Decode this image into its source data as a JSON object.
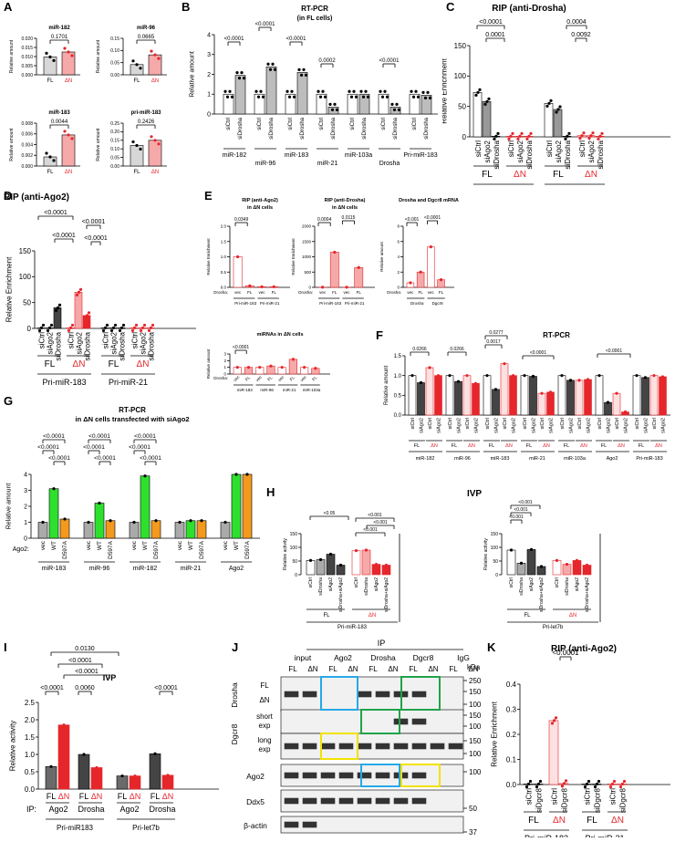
{
  "colors": {
    "fl": "#d7d7d7",
    "dn": "#f6a9a9",
    "red": "#e5262b",
    "green": "#2ee02e",
    "orange": "#f39a1e",
    "blue": "#26a9e8",
    "dgreen": "#1fa34a",
    "yellow": "#f2e200",
    "dark": "#444444"
  },
  "panels": {
    "A": {
      "label": "A",
      "charts": [
        {
          "title": "miR-182",
          "ylabel": "Relative amount",
          "ylim": [
            0,
            0.02
          ],
          "ticks": [
            "0.000",
            "0.005",
            "0.010",
            "0.015",
            "0.020"
          ],
          "categories": [
            "FL",
            "ΔN"
          ],
          "values": [
            0.0098,
            0.0125
          ],
          "pvalue": "0.1701"
        },
        {
          "title": "miR-96",
          "ylabel": "Relative amount",
          "ylim": [
            0,
            0.15
          ],
          "ticks": [
            "0.00",
            "0.05",
            "0.10",
            "0.15"
          ],
          "categories": [
            "FL",
            "ΔN"
          ],
          "values": [
            0.042,
            0.082
          ],
          "pvalue": "0.0665"
        },
        {
          "title": "miR-183",
          "ylabel": "Relative amount",
          "ylim": [
            0,
            0.008
          ],
          "ticks": [
            "0.000",
            "0.002",
            "0.004",
            "0.006",
            "0.008"
          ],
          "categories": [
            "FL",
            "ΔN"
          ],
          "values": [
            0.0017,
            0.0058
          ],
          "pvalue": "0.0044"
        },
        {
          "title": "pri-miR-183",
          "ylabel": "Relative amount",
          "ylim": [
            0,
            0.25
          ],
          "ticks": [
            "0.00",
            "0.05",
            "0.10",
            "0.15",
            "0.20",
            "0.25"
          ],
          "categories": [
            "FL",
            "ΔN"
          ],
          "values": [
            0.12,
            0.15
          ],
          "pvalue": "0.2426"
        }
      ]
    },
    "B": {
      "label": "B",
      "title": "RT-PCR",
      "subtitle": "(in FL cells)",
      "ylabel": "Relative amount",
      "ylim": [
        0,
        4
      ],
      "ticks": [
        "0",
        "1",
        "2",
        "3",
        "4"
      ],
      "groups": [
        "miR-182",
        "miR-96",
        "miR-183",
        "miR-21",
        "miR-103a",
        "Drosha",
        "Pri-miR-183"
      ],
      "categories": [
        "siCtrl",
        "siDrosha"
      ],
      "values": [
        [
          1.0,
          1.95
        ],
        [
          1.0,
          2.38
        ],
        [
          1.0,
          2.1
        ],
        [
          1.0,
          0.35
        ],
        [
          1.0,
          1.0
        ],
        [
          1.0,
          0.35
        ],
        [
          1.0,
          0.95
        ]
      ],
      "pvalues": [
        "<0.0001",
        "<0.0001",
        "<0.0001",
        "0.0002",
        "",
        "<0.0001",
        ""
      ]
    },
    "C": {
      "label": "C",
      "title": "RIP (anti-Drosha)",
      "ylabel": "Relative Enrichment",
      "ylim": [
        0,
        150
      ],
      "ticks": [
        "0",
        "50",
        "100",
        "150"
      ],
      "categories": [
        "siCtrl",
        "siAgo2",
        "siDrosha"
      ],
      "groups": [
        {
          "name": "Pri-miR-183",
          "sub": [
            {
              "cell": "FL",
              "values": [
                73,
                58,
                1
              ]
            },
            {
              "cell": "ΔN",
              "values": [
                1,
                1,
                1
              ]
            }
          ]
        },
        {
          "name": "Pri-miR-21",
          "sub": [
            {
              "cell": "FL",
              "values": [
                55,
                45,
                1
              ]
            },
            {
              "cell": "ΔN",
              "values": [
                2,
                2,
                1
              ]
            }
          ]
        }
      ],
      "pvalues": [
        "<0.0001",
        "0.0001",
        "0.0004",
        "0.0092"
      ]
    },
    "D": {
      "label": "D",
      "title": "RIP (anti-Ago2)",
      "ylabel": "Relative Enrichment",
      "ylim": [
        0,
        150
      ],
      "ticks": [
        "0",
        "50",
        "100",
        "150"
      ],
      "categories": [
        "siCtrl",
        "siAgo2",
        "siDrosha"
      ],
      "groups": [
        {
          "name": "Pri-miR-183",
          "sub": [
            {
              "cell": "FL",
              "values": [
                1,
                1,
                40
              ]
            },
            {
              "cell": "ΔN",
              "values": [
                1,
                70,
                25
              ]
            }
          ]
        },
        {
          "name": "Pri-miR-21",
          "sub": [
            {
              "cell": "FL",
              "values": [
                1,
                1,
                1
              ]
            },
            {
              "cell": "ΔN",
              "values": [
                1,
                1,
                1
              ]
            }
          ]
        }
      ],
      "pvalues": [
        "<0.0001",
        "<0.0001",
        "<0.0001",
        "<0.0001"
      ]
    },
    "E": {
      "label": "E",
      "charts": [
        {
          "title": "RIP (anti-Ago2)",
          "title2": "in ΔN cells",
          "ylabel": "Relative Enrichment",
          "ylim": [
            0,
            2
          ],
          "ticks": [
            "0.0",
            "0.5",
            "1.0",
            "1.5",
            "2.0"
          ],
          "rowlabel": "Drosha:",
          "categories": [
            "vec",
            "FL",
            "vec",
            "FL"
          ],
          "groups": [
            "Pri-miR-183",
            "Pri-miR-21"
          ],
          "values": [
            1.0,
            0.05,
            0.02,
            0.02
          ],
          "pvalue": "0.0349"
        },
        {
          "title": "RIP (anti-Drosha)",
          "title2": "in ΔN cells",
          "ylabel": "Relative Enrichment",
          "ylim": [
            0,
            2000
          ],
          "ticks": [
            "0",
            "500",
            "1000",
            "1500",
            "2000"
          ],
          "rowlabel": "Drosha:",
          "categories": [
            "vec",
            "FL",
            "vec",
            "FL"
          ],
          "groups": [
            "Pri-miR-183",
            "Pri-miR-21"
          ],
          "values": [
            5,
            1150,
            5,
            650
          ],
          "pvalues": [
            "0.0004",
            "0.0115"
          ]
        },
        {
          "title": "Drosha and Dgcr8 mRNA",
          "ylabel": "Relative amount",
          "ylim": [
            0,
            8
          ],
          "ticks": [
            "0",
            "2",
            "4",
            "6",
            "8"
          ],
          "rowlabel": "Drosha:",
          "categories": [
            "vec",
            "FL",
            "vec",
            "FL"
          ],
          "groups": [
            "Drosha",
            "Dgcr8"
          ],
          "values": [
            0.6,
            2.0,
            5.3,
            1.0
          ],
          "pvalues": [
            "<0.001",
            "<0.0001"
          ]
        },
        {
          "title": "miRNAs in ΔN cells",
          "ylabel": "Relative amount",
          "ylim": [
            0,
            3
          ],
          "ticks": [
            "0",
            "1",
            "2",
            "3"
          ],
          "rowlabel": "Drosha:",
          "categories": [
            "vec",
            "FL",
            "vec",
            "FL",
            "vec",
            "FL",
            "vec",
            "FL"
          ],
          "groups": [
            "miR-183",
            "miR-96",
            "miR-21",
            "miR-103a"
          ],
          "values": [
            1.0,
            1.0,
            1.0,
            1.2,
            1.0,
            2.2,
            1.0,
            0.85
          ],
          "pvalue": "<0.0001"
        }
      ]
    },
    "F": {
      "label": "F",
      "title": "RT-PCR",
      "ylabel": "Relative amount",
      "ylim": [
        0,
        1.5
      ],
      "ticks": [
        "0.0",
        "0.5",
        "1.0",
        "1.5"
      ],
      "categories": [
        "siCtrl",
        "siAgo2",
        "siCtrl",
        "siAgo2"
      ],
      "cells": [
        "FL",
        "ΔN"
      ],
      "groups": [
        "miR-182",
        "miR-96",
        "miR-183",
        "miR-21",
        "miR-103a",
        "Ago2",
        "Pri-miR-183"
      ],
      "values": [
        [
          1.0,
          0.82,
          1.2,
          1.0
        ],
        [
          1.0,
          0.85,
          1.0,
          0.8
        ],
        [
          1.0,
          0.65,
          1.3,
          1.0
        ],
        [
          1.0,
          0.98,
          0.55,
          0.58
        ],
        [
          1.0,
          0.88,
          0.88,
          0.9
        ],
        [
          1.0,
          0.32,
          0.55,
          0.08
        ],
        [
          1.0,
          0.95,
          1.0,
          0.97
        ]
      ],
      "pvalues": [
        "0.0266",
        "0.0266",
        "0.0017",
        "0.0277",
        "<0.0001",
        "<0.0001"
      ]
    },
    "G": {
      "label": "G",
      "title": "RT-PCR",
      "subtitle": "in ΔN cells transfected with siAgo2",
      "ylabel": "Relative amount",
      "ylim": [
        0,
        4
      ],
      "ticks": [
        "0",
        "1",
        "2",
        "3",
        "4"
      ],
      "rowlabel": "Ago2:",
      "categories": [
        "vec",
        "WT",
        "D597A"
      ],
      "groups": [
        "miR-183",
        "miR-96",
        "miR-182",
        "miR-21",
        "Ago2"
      ],
      "values": [
        [
          1.0,
          3.1,
          1.2
        ],
        [
          1.0,
          2.2,
          1.1
        ],
        [
          1.0,
          3.9,
          1.1
        ],
        [
          1.0,
          1.1,
          1.1
        ],
        [
          1.0,
          4.0,
          4.0
        ]
      ],
      "pvalues": [
        "<0.0001",
        "<0.0001",
        "<0.0001",
        "<0.0001",
        "<0.0001",
        "<0.0001",
        "<0.0001",
        "<0.0001",
        "<0.0001"
      ]
    },
    "H": {
      "label": "H",
      "title": "IVP",
      "ylabel": "Relative activity",
      "ylim": [
        0,
        150
      ],
      "ticks": [
        "0",
        "50",
        "100",
        "150"
      ],
      "categories": [
        "siCtrl",
        "siDrosha",
        "siAgo2",
        "siDrosha+siAgo2"
      ],
      "groups": [
        {
          "name": "Pri-miR-183",
          "sub": [
            {
              "cell": "FL",
              "values": [
                52,
                55,
                75,
                35
              ]
            },
            {
              "cell": "ΔN",
              "values": [
                88,
                90,
                38,
                35
              ]
            }
          ]
        },
        {
          "name": "Pri-let7b",
          "sub": [
            {
              "cell": "FL",
              "values": [
                90,
                42,
                92,
                30
              ]
            },
            {
              "cell": "ΔN",
              "values": [
                52,
                38,
                52,
                35
              ]
            }
          ]
        }
      ],
      "pvalues": [
        "<0.05",
        "<0.001",
        "<0.001",
        "<0.001",
        "<0.001",
        "<0.001",
        "<0.001"
      ]
    },
    "I": {
      "label": "I",
      "title": "IVP",
      "ylabel": "Relative activity",
      "ylim": [
        0,
        2.5
      ],
      "ticks": [
        "0.0",
        "0.5",
        "1.0",
        "1.5",
        "2.0",
        "2.5"
      ],
      "rowlabel": "IP:",
      "groups": [
        {
          "name": "Pri-miR183",
          "ips": [
            "Ago2",
            "Drosha"
          ],
          "values": [
            [
              0.65,
              1.85
            ],
            [
              1.0,
              0.62
            ]
          ]
        },
        {
          "name": "Pri-let7b",
          "ips": [
            "Ago2",
            "Drosha"
          ],
          "values": [
            [
              0.38,
              0.38
            ],
            [
              1.02,
              0.4
            ]
          ]
        }
      ],
      "cells": [
        "FL",
        "ΔN"
      ],
      "pvalues": [
        "0.0130",
        "<0.0001",
        "<0.0001",
        "<0.0001",
        "0.0060",
        "<0.0001"
      ]
    },
    "J": {
      "label": "J",
      "iplabel": "IP",
      "kda": "kDa",
      "lanes": [
        "input",
        "Ago2",
        "Drosha",
        "Dgcr8",
        "IgG"
      ],
      "cells": [
        "FL",
        "ΔN"
      ],
      "rows": [
        {
          "name": "Drosha",
          "sub": [
            "FL",
            "ΔN"
          ],
          "markers": [
            "250",
            "150",
            "100"
          ]
        },
        {
          "name": "Dgcr8",
          "sub": [
            "short exp",
            "long exp"
          ],
          "markers": [
            "150",
            "100",
            "150",
            "100"
          ]
        },
        {
          "name": "Ago2",
          "markers": [
            "100"
          ]
        },
        {
          "name": "Ddx5",
          "markers": [
            "50"
          ]
        },
        {
          "name": "β-actin",
          "markers": [
            "37"
          ]
        }
      ]
    },
    "K": {
      "label": "K",
      "title": "RIP (anti-Ago2)",
      "ylabel": "Relative Enrichment",
      "ylim": [
        0,
        0.4
      ],
      "ticks": [
        "0.0",
        "0.1",
        "0.2",
        "0.3",
        "0.4"
      ],
      "categories": [
        "siCtrl",
        "siDgcr8"
      ],
      "groups": [
        {
          "name": "Pri-miR-183",
          "sub": [
            {
              "cell": "FL",
              "values": [
                0.002,
                0.002
              ]
            },
            {
              "cell": "ΔN",
              "values": [
                0.255,
                0.004
              ]
            }
          ]
        },
        {
          "name": "Pri-miR-21",
          "sub": [
            {
              "cell": "FL",
              "values": [
                0.002,
                0.002
              ]
            },
            {
              "cell": "ΔN",
              "values": [
                0.002,
                0.002
              ]
            }
          ]
        }
      ],
      "pvalue": "<0.0001"
    }
  }
}
